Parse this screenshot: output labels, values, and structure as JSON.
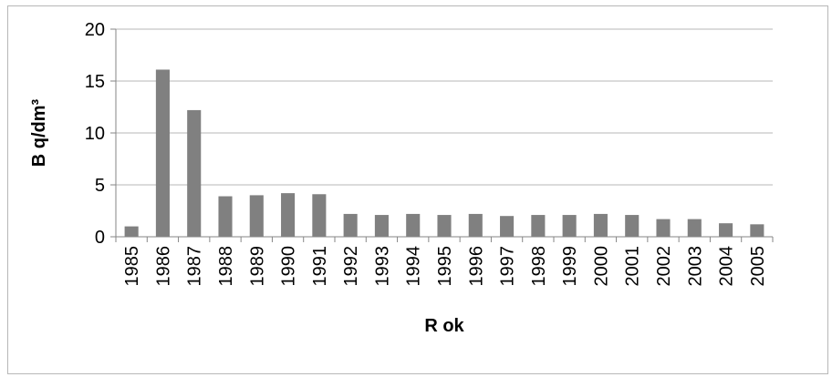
{
  "chart_data": {
    "type": "bar",
    "title": "",
    "xlabel": "R ok",
    "ylabel": "B q/dm³",
    "categories": [
      "1985",
      "1986",
      "1987",
      "1988",
      "1989",
      "1990",
      "1991",
      "1992",
      "1993",
      "1994",
      "1995",
      "1996",
      "1997",
      "1998",
      "1999",
      "2000",
      "2001",
      "2002",
      "2003",
      "2004",
      "2005"
    ],
    "values": [
      1.0,
      16.1,
      12.2,
      3.9,
      4.0,
      4.2,
      4.1,
      2.2,
      2.1,
      2.2,
      2.1,
      2.2,
      2.0,
      2.1,
      2.1,
      2.2,
      2.1,
      1.7,
      1.7,
      1.3,
      1.2
    ],
    "ylim": [
      0,
      20
    ],
    "yticks": [
      "0",
      "5",
      "10",
      "15",
      "20"
    ],
    "grid": true,
    "legend": "none",
    "bar_color": "#808080"
  }
}
